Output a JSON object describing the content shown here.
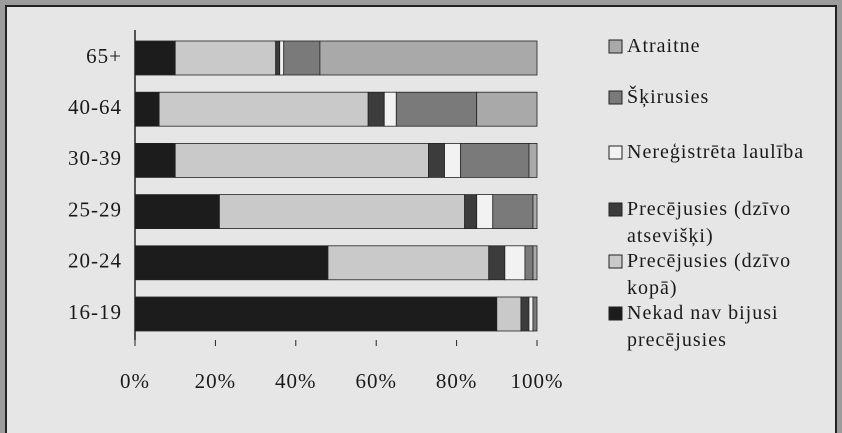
{
  "chart_data": {
    "type": "stacked-bar-horizontal",
    "categories": [
      "65+",
      "40-64",
      "30-39",
      "25-29",
      "20-24",
      "16-19"
    ],
    "series": [
      {
        "name": "Nekad nav bijusi precējusies",
        "color": "#1c1c1c",
        "values": [
          10,
          6,
          10,
          21,
          48,
          90
        ]
      },
      {
        "name": "Precējusies (dzīvo kopā)",
        "color": "#c9c9c9",
        "values": [
          25,
          52,
          63,
          61,
          40,
          6
        ]
      },
      {
        "name": "Precējusies (dzīvo atsevišķi)",
        "color": "#3c3c3c",
        "values": [
          1,
          4,
          4,
          3,
          4,
          2
        ]
      },
      {
        "name": "Nereģistrēta laulība",
        "color": "#f2f2f2",
        "values": [
          1,
          3,
          4,
          4,
          5,
          1
        ]
      },
      {
        "name": "Šķirusies",
        "color": "#7a7a7a",
        "values": [
          9,
          20,
          17,
          10,
          2,
          1
        ]
      },
      {
        "name": "Atraitne",
        "color": "#a9a9a9",
        "values": [
          54,
          15,
          2,
          1,
          1,
          0
        ]
      }
    ],
    "xlim": [
      0,
      100
    ],
    "xticks": [
      {
        "value": 0,
        "label": "0%"
      },
      {
        "value": 20,
        "label": "20%"
      },
      {
        "value": 40,
        "label": "40%"
      },
      {
        "value": 60,
        "label": "60%"
      },
      {
        "value": 80,
        "label": "80%"
      },
      {
        "value": 100,
        "label": "100%"
      }
    ],
    "legend_position": "right"
  }
}
